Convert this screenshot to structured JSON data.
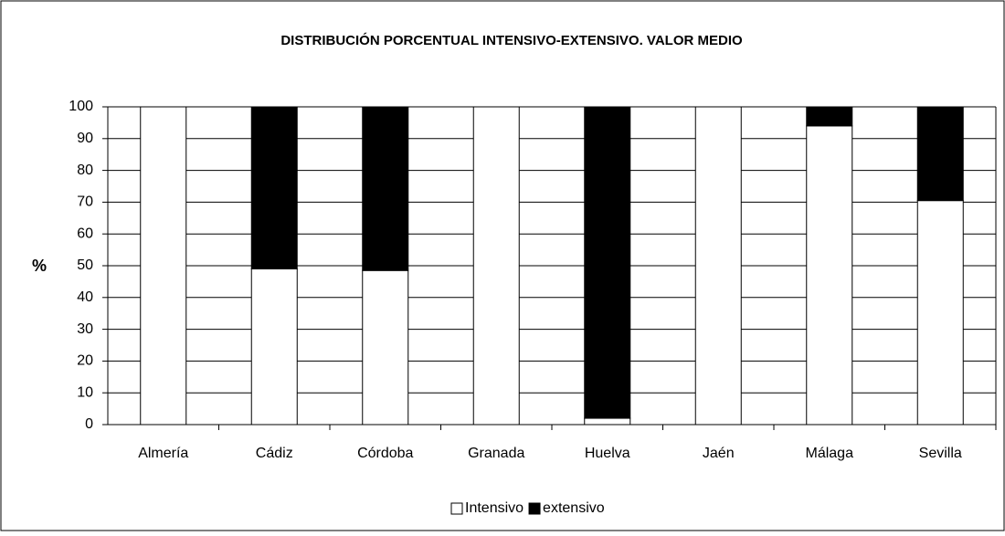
{
  "chart_data": {
    "type": "stacked_bar",
    "title": "DISTRIBUCIÓN PORCENTUAL INTENSIVO-EXTENSIVO. VALOR MEDIO",
    "y_label": "%",
    "categories": [
      "Almería",
      "Cádiz",
      "Córdoba",
      "Granada",
      "Huelva",
      "Jaén",
      "Málaga",
      "Sevilla"
    ],
    "series": [
      {
        "name": "Intensivo",
        "color": "#ffffff",
        "values": [
          100,
          49,
          48.5,
          100,
          2,
          100,
          94,
          70.5
        ]
      },
      {
        "name": "extensivo",
        "color": "#000000",
        "values": [
          0,
          51,
          51.5,
          0,
          98,
          0,
          6,
          29.5
        ]
      }
    ],
    "ylim": [
      0,
      100
    ],
    "yticks": [
      0,
      10,
      20,
      30,
      40,
      50,
      60,
      70,
      80,
      90,
      100
    ],
    "grid": true,
    "legend": "bottom"
  }
}
